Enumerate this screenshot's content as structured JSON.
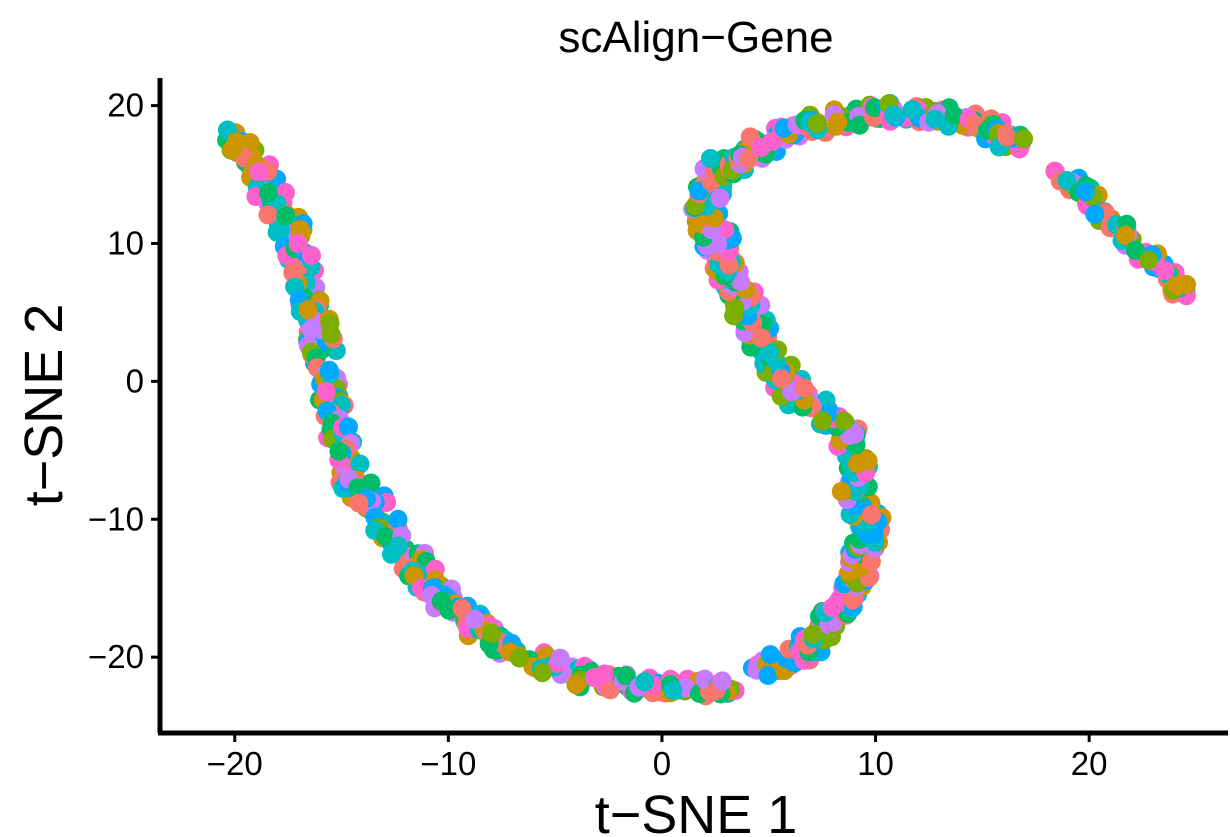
{
  "chart_data": {
    "type": "scatter",
    "title": "scAlign−Gene",
    "xlabel": "t−SNE 1",
    "ylabel": "t−SNE 2",
    "xlim": [
      -23.5,
      26.5
    ],
    "ylim": [
      -25.5,
      22
    ],
    "x_ticks": [
      {
        "value": -20,
        "label": "−20"
      },
      {
        "value": -10,
        "label": "−10"
      },
      {
        "value": 0,
        "label": "0"
      },
      {
        "value": 10,
        "label": "10"
      },
      {
        "value": 20,
        "label": "20"
      }
    ],
    "y_ticks": [
      {
        "value": -20,
        "label": "−20"
      },
      {
        "value": -10,
        "label": "−10"
      },
      {
        "value": 0,
        "label": "0"
      },
      {
        "value": 10,
        "label": "10"
      },
      {
        "value": 20,
        "label": "20"
      }
    ],
    "grid": false,
    "legend": "none",
    "palette": [
      "#F8766D",
      "#CD9600",
      "#7CAE00",
      "#00BE67",
      "#00BFC4",
      "#00A9FF",
      "#C77CFF",
      "#FF61CC"
    ],
    "path_trace": [
      [
        -20.5,
        18.3
      ],
      [
        -19.5,
        16.8
      ],
      [
        -18.8,
        15.0
      ],
      [
        -18.0,
        12.8
      ],
      [
        -17.2,
        10.5
      ],
      [
        -16.8,
        8.0
      ],
      [
        -16.4,
        5.5
      ],
      [
        -16.0,
        3.5
      ],
      [
        -15.8,
        1.5
      ],
      [
        -15.5,
        -1.0
      ],
      [
        -15.2,
        -3.0
      ],
      [
        -15.0,
        -5.0
      ],
      [
        -14.5,
        -7.0
      ],
      [
        -13.8,
        -8.5
      ],
      [
        -13.0,
        -10.0
      ],
      [
        -12.2,
        -11.8
      ],
      [
        -11.5,
        -13.5
      ],
      [
        -10.8,
        -14.8
      ],
      [
        -10.0,
        -16.0
      ],
      [
        -9.0,
        -17.3
      ],
      [
        -8.0,
        -18.5
      ],
      [
        -7.0,
        -19.5
      ],
      [
        -5.5,
        -20.5
      ],
      [
        -4.0,
        -21.3
      ],
      [
        -2.5,
        -21.8
      ],
      [
        -1.0,
        -22.0
      ],
      [
        0.5,
        -22.2
      ],
      [
        2.0,
        -22.2
      ],
      [
        3.0,
        -22.0
      ]
    ],
    "path_mid": [
      [
        4.5,
        -21.0
      ],
      [
        5.5,
        -20.5
      ],
      [
        6.5,
        -20.0
      ],
      [
        7.0,
        -19.0
      ],
      [
        7.5,
        -17.8
      ],
      [
        8.5,
        -16.5
      ],
      [
        9.0,
        -15.0
      ],
      [
        9.2,
        -13.5
      ],
      [
        9.5,
        -12.0
      ],
      [
        9.8,
        -10.8
      ],
      [
        9.5,
        -9.5
      ],
      [
        9.0,
        -8.0
      ],
      [
        9.2,
        -6.5
      ],
      [
        9.0,
        -5.0
      ],
      [
        8.5,
        -3.5
      ],
      [
        7.5,
        -2.5
      ],
      [
        6.5,
        -1.0
      ],
      [
        5.5,
        0.5
      ],
      [
        5.0,
        2.0
      ],
      [
        4.5,
        3.5
      ],
      [
        4.0,
        5.0
      ],
      [
        3.5,
        6.5
      ],
      [
        3.0,
        8.0
      ],
      [
        2.8,
        9.5
      ],
      [
        2.5,
        10.5
      ],
      [
        2.0,
        12.0
      ],
      [
        2.2,
        13.5
      ],
      [
        2.5,
        14.8
      ],
      [
        3.0,
        15.8
      ],
      [
        4.0,
        16.5
      ],
      [
        5.0,
        17.3
      ],
      [
        6.0,
        18.2
      ],
      [
        7.5,
        18.8
      ],
      [
        9.0,
        19.2
      ],
      [
        10.5,
        19.5
      ],
      [
        12.0,
        19.5
      ],
      [
        13.5,
        19.2
      ],
      [
        15.0,
        18.5
      ],
      [
        16.0,
        17.8
      ],
      [
        16.8,
        17.0
      ]
    ],
    "path_right": [
      [
        18.5,
        15.0
      ],
      [
        19.5,
        14.0
      ],
      [
        20.5,
        12.5
      ],
      [
        21.5,
        11.0
      ],
      [
        22.5,
        9.5
      ],
      [
        23.3,
        8.3
      ],
      [
        24.0,
        7.0
      ],
      [
        24.5,
        6.0
      ]
    ]
  }
}
